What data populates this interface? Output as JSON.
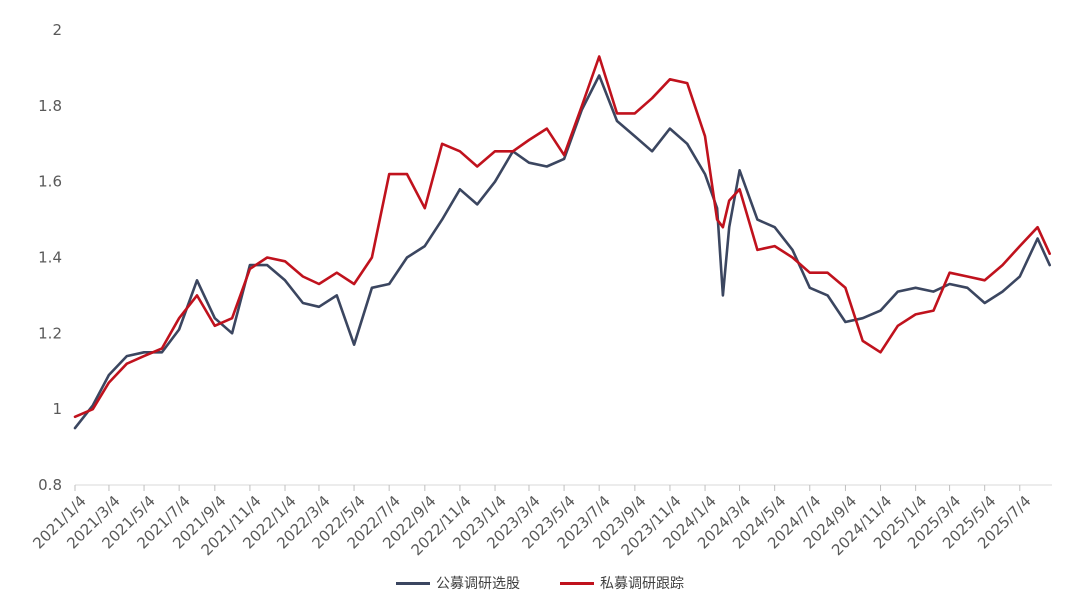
{
  "chart_data": {
    "type": "line",
    "title": "",
    "xlabel": "",
    "ylabel": "",
    "ylim": [
      0.8,
      2.0
    ],
    "yticks": [
      "0.8",
      "1",
      "1.2",
      "1.4",
      "1.6",
      "1.8",
      "2"
    ],
    "grid": false,
    "legend_position": "bottom",
    "x_tick_labels": [
      "2021/1/4",
      "2021/3/4",
      "2021/5/4",
      "2021/7/4",
      "2021/9/4",
      "2021/11/4",
      "2022/1/4",
      "2022/3/4",
      "2022/5/4",
      "2022/7/4",
      "2022/9/4",
      "2022/11/4",
      "2023/1/4",
      "2023/3/4",
      "2023/5/4",
      "2023/7/4",
      "2023/9/4",
      "2023/11/4",
      "2024/1/4",
      "2024/3/4",
      "2024/5/4",
      "2024/7/4",
      "2024/9/4",
      "2024/11/4",
      "2025/1/4",
      "2025/3/4",
      "2025/5/4",
      "2025/7/4"
    ],
    "x": [
      "2021/1/4",
      "2021/2/4",
      "2021/3/4",
      "2021/4/4",
      "2021/5/4",
      "2021/6/4",
      "2021/7/4",
      "2021/8/4",
      "2021/9/4",
      "2021/10/4",
      "2021/11/4",
      "2021/12/4",
      "2022/1/4",
      "2022/2/4",
      "2022/3/4",
      "2022/4/4",
      "2022/5/4",
      "2022/6/4",
      "2022/7/4",
      "2022/8/4",
      "2022/9/4",
      "2022/10/4",
      "2022/11/4",
      "2022/12/4",
      "2023/1/4",
      "2023/2/4",
      "2023/3/4",
      "2023/4/4",
      "2023/5/4",
      "2023/6/4",
      "2023/7/4",
      "2023/8/4",
      "2023/9/4",
      "2023/10/4",
      "2023/11/4",
      "2023/12/4",
      "2024/1/4",
      "2024/1/25",
      "2024/2/4",
      "2024/2/15",
      "2024/3/4",
      "2024/4/4",
      "2024/5/4",
      "2024/6/4",
      "2024/7/4",
      "2024/8/4",
      "2024/9/4",
      "2024/10/4",
      "2024/11/4",
      "2024/12/4",
      "2025/1/4",
      "2025/2/4",
      "2025/3/4",
      "2025/4/4",
      "2025/5/4",
      "2025/6/4",
      "2025/7/4",
      "2025/8/4",
      "2025/8/25"
    ],
    "series": [
      {
        "name": "公募调研选股",
        "color": "#3b4660",
        "values": [
          0.95,
          1.01,
          1.09,
          1.14,
          1.15,
          1.15,
          1.21,
          1.34,
          1.24,
          1.2,
          1.38,
          1.38,
          1.34,
          1.28,
          1.27,
          1.3,
          1.17,
          1.32,
          1.33,
          1.4,
          1.43,
          1.5,
          1.58,
          1.54,
          1.6,
          1.68,
          1.65,
          1.64,
          1.66,
          1.79,
          1.88,
          1.76,
          1.72,
          1.68,
          1.74,
          1.7,
          1.62,
          1.53,
          1.3,
          1.48,
          1.63,
          1.5,
          1.48,
          1.42,
          1.32,
          1.3,
          1.23,
          1.24,
          1.26,
          1.31,
          1.32,
          1.31,
          1.33,
          1.32,
          1.28,
          1.31,
          1.35,
          1.45,
          1.38
        ]
      },
      {
        "name": "私募调研跟踪",
        "color": "#c0121d",
        "values": [
          0.98,
          1.0,
          1.07,
          1.12,
          1.14,
          1.16,
          1.24,
          1.3,
          1.22,
          1.24,
          1.37,
          1.4,
          1.39,
          1.35,
          1.33,
          1.36,
          1.33,
          1.4,
          1.62,
          1.62,
          1.53,
          1.7,
          1.68,
          1.64,
          1.68,
          1.68,
          1.71,
          1.74,
          1.67,
          1.8,
          1.93,
          1.78,
          1.78,
          1.82,
          1.87,
          1.86,
          1.72,
          1.5,
          1.48,
          1.55,
          1.58,
          1.42,
          1.43,
          1.4,
          1.36,
          1.36,
          1.32,
          1.18,
          1.15,
          1.22,
          1.25,
          1.26,
          1.36,
          1.35,
          1.34,
          1.38,
          1.43,
          1.48,
          1.41
        ]
      }
    ]
  }
}
